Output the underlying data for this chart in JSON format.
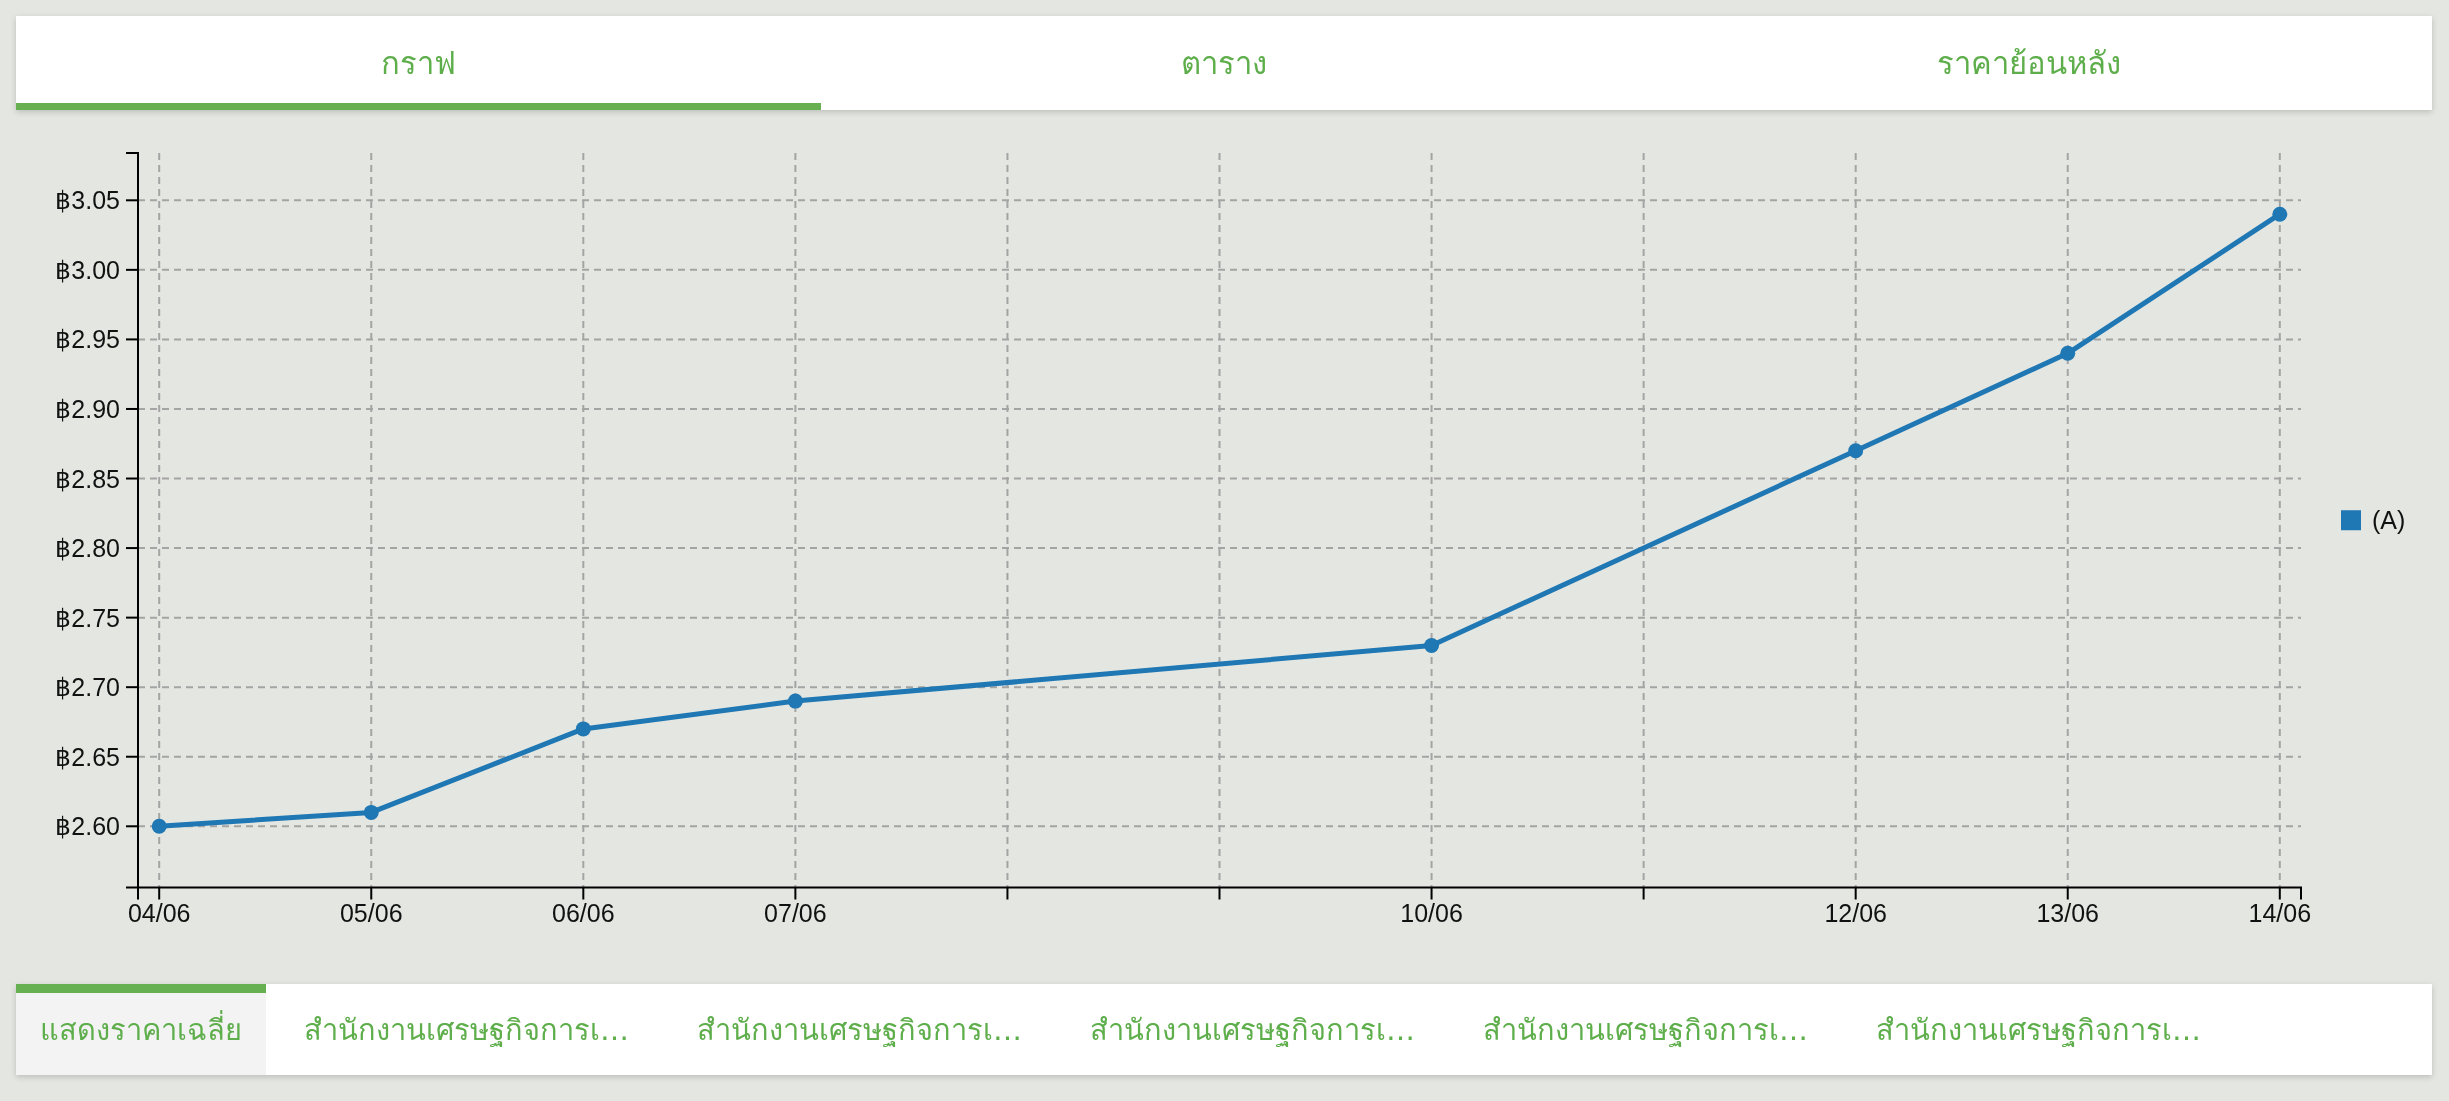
{
  "chart_data": {
    "type": "line",
    "x": [
      "--06-04",
      "--06-05",
      "--06-06",
      "--06-07",
      "--06-10",
      "--06-12",
      "--06-13",
      "--06-14"
    ],
    "series": [
      {
        "name": "(A)",
        "color": "#1f77b4",
        "values": [
          2.6,
          2.61,
          2.67,
          2.69,
          2.73,
          2.87,
          2.94,
          3.04
        ]
      }
    ],
    "xlim": [
      "--06-03T21:36",
      "--06-14T02:24"
    ],
    "xticks": [
      {
        "value": "--06-04",
        "label": "04/06"
      },
      {
        "value": "--06-05",
        "label": "05/06"
      },
      {
        "value": "--06-06",
        "label": "06/06"
      },
      {
        "value": "--06-07",
        "label": "07/06"
      },
      {
        "value": "--06-08",
        "label": null
      },
      {
        "value": "--06-09",
        "label": null
      },
      {
        "value": "--06-10",
        "label": "10/06"
      },
      {
        "value": "--06-11",
        "label": null
      },
      {
        "value": "--06-12",
        "label": "12/06"
      },
      {
        "value": "--06-13",
        "label": "13/06"
      },
      {
        "value": "--06-14",
        "label": "14/06"
      }
    ],
    "ylim": [
      2.556,
      3.084
    ],
    "yticks": [
      {
        "value": 2.6,
        "label": "฿2.60"
      },
      {
        "value": 2.65,
        "label": "฿2.65"
      },
      {
        "value": 2.7,
        "label": "฿2.70"
      },
      {
        "value": 2.75,
        "label": "฿2.75"
      },
      {
        "value": 2.8,
        "label": "฿2.80"
      },
      {
        "value": 2.85,
        "label": "฿2.85"
      },
      {
        "value": 2.9,
        "label": "฿2.90"
      },
      {
        "value": 2.95,
        "label": "฿2.95"
      },
      {
        "value": 3.0,
        "label": "฿3.00"
      },
      {
        "value": 3.05,
        "label": "฿3.05"
      }
    ],
    "grid": true,
    "legend": "right",
    "marker": "circle",
    "line_style": "solid",
    "annotations": [
      "กราฟ",
      "ตาราง",
      "ราคาย้อนหลัง",
      "แสดงราคาเฉลี่ย",
      "สำนักงานเศรษฐกิจการเ…",
      "สำนักงานเศรษฐกิจการเ…",
      "สำนักงานเศรษฐกิจการเ…",
      "สำนักงานเศรษฐกิจการเ…",
      "สำนักงานเศรษฐกิจการเ…"
    ]
  }
}
